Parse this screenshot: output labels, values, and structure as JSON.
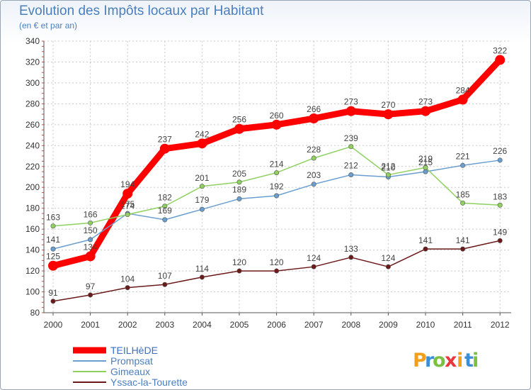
{
  "header": {
    "title": "Evolution des Impôts locaux par Habitant",
    "subtitle": "(en € et par an)"
  },
  "logo": {
    "letters": [
      "P",
      "r",
      "o",
      "x",
      "i",
      "t",
      "i"
    ],
    "colors": [
      "#f2a01a",
      "#3a8fd6",
      "#7ac143",
      "#e8383d",
      "#f2a01a",
      "#3a8fd6",
      "#7ac143"
    ]
  },
  "chart_data": {
    "type": "line",
    "title": "Evolution des Impôts locaux par Habitant",
    "subtitle": "(en € et par an)",
    "xlabel": "",
    "ylabel": "",
    "x": [
      2000,
      2001,
      2002,
      2003,
      2004,
      2005,
      2006,
      2007,
      2008,
      2009,
      2010,
      2011,
      2012
    ],
    "ylim": [
      80,
      340
    ],
    "yticks": [
      80,
      100,
      120,
      140,
      160,
      180,
      200,
      220,
      240,
      260,
      280,
      300,
      320,
      340
    ],
    "legend_position": "bottom-left",
    "series": [
      {
        "name": "TEILHèDE",
        "color": "#ff0000",
        "values": [
          125,
          134,
          194,
          237,
          242,
          256,
          260,
          266,
          273,
          270,
          273,
          284,
          322
        ]
      },
      {
        "name": "Prompsat",
        "color": "#6a9ecf",
        "values": [
          141,
          150,
          175,
          169,
          179,
          189,
          192,
          203,
          212,
          210,
          215,
          221,
          226
        ]
      },
      {
        "name": "Gimeaux",
        "color": "#8fd060",
        "values": [
          163,
          166,
          174,
          182,
          201,
          205,
          214,
          228,
          239,
          212,
          219,
          185,
          183
        ]
      },
      {
        "name": "Yssac-la-Tourette",
        "color": "#6b1a1a",
        "values": [
          91,
          97,
          104,
          107,
          114,
          120,
          120,
          124,
          133,
          124,
          141,
          141,
          149
        ]
      }
    ]
  }
}
